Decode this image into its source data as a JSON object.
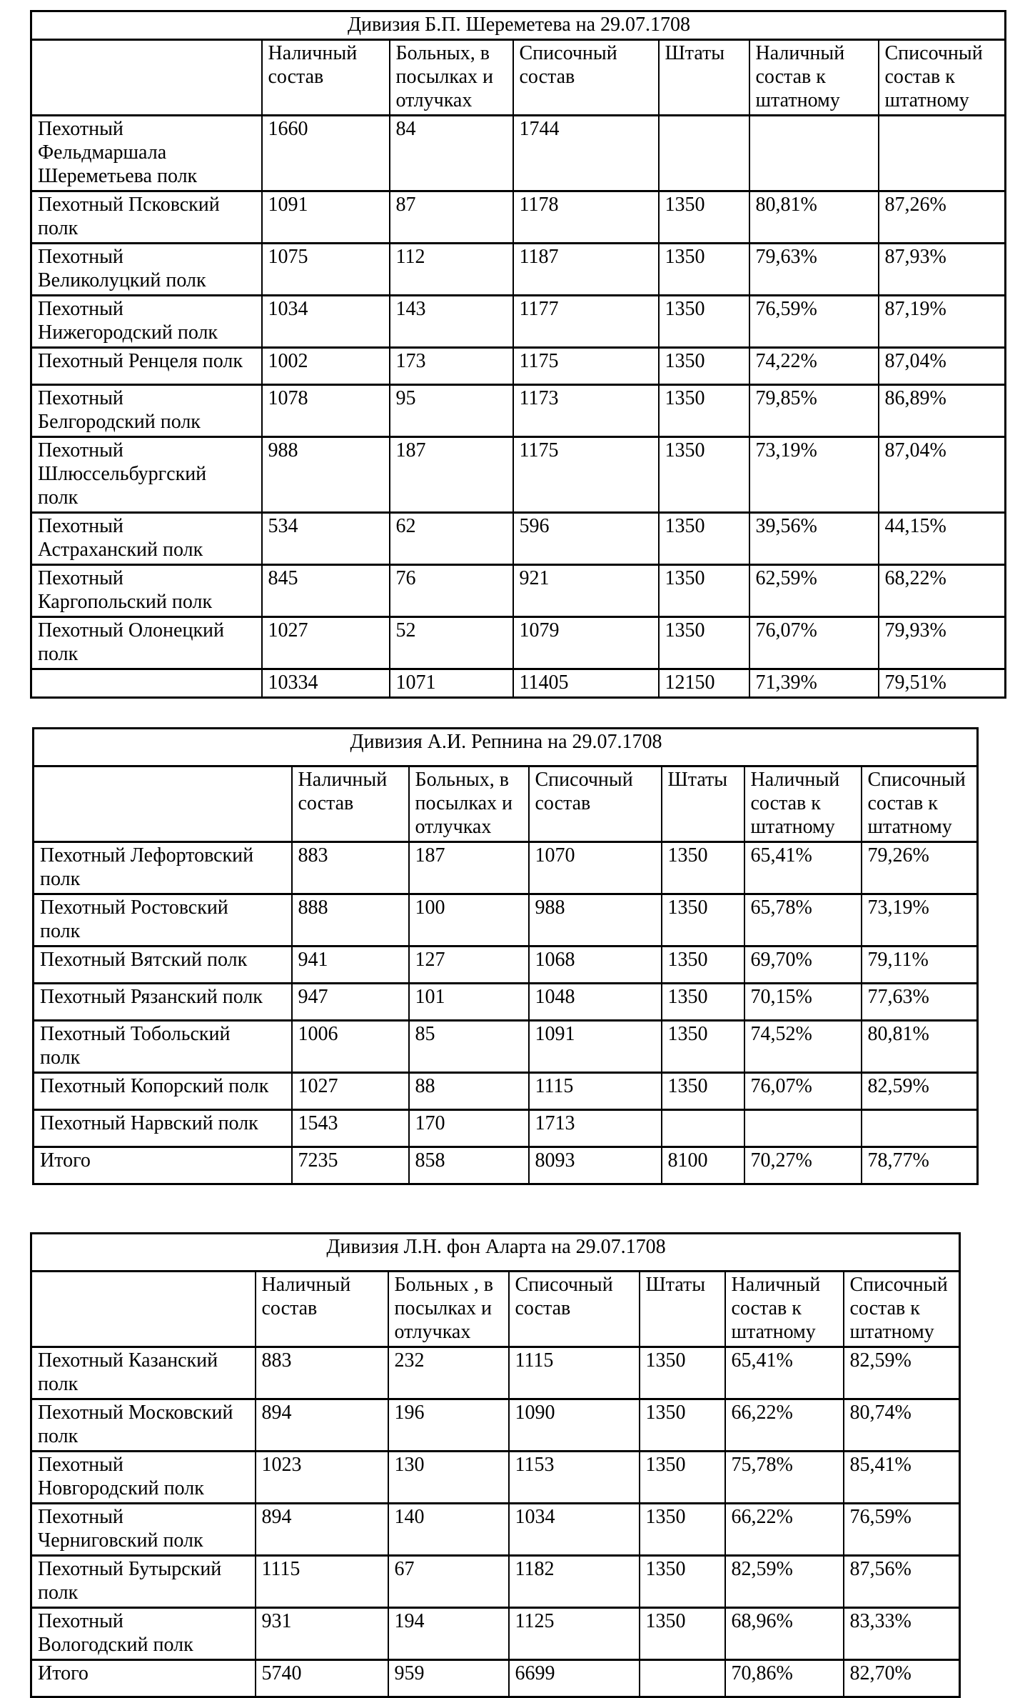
{
  "page": {
    "background": "#ffffff",
    "text_color": "#000000",
    "border_color": "#000000"
  },
  "tables": [
    {
      "title": "Дивизия Б.П. Шереметева на 29.07.1708",
      "columns": [
        "",
        "Наличный\nсостав",
        "Больных, в\nпосылках и\nотлучках",
        "Списочный\nсостав",
        "Штаты",
        "Наличный\nсостав к\nштатному",
        "Списочный\nсостав к\nштатному"
      ],
      "rows": [
        {
          "cells": [
            "Пехотный\nФельдмаршала\nШереметьева полк",
            "1660",
            "84",
            "1744",
            "",
            "",
            ""
          ]
        },
        {
          "cells": [
            "Пехотный Псковский\nполк",
            "1091",
            "87",
            "1178",
            "1350",
            "80,81%",
            "87,26%"
          ]
        },
        {
          "cells": [
            "Пехотный\nВеликолуцкий полк",
            "1075",
            "112",
            "1187",
            "1350",
            "79,63%",
            "87,93%"
          ]
        },
        {
          "cells": [
            "Пехотный\nНижегородский полк",
            "1034",
            "143",
            "1177",
            "1350",
            "76,59%",
            "87,19%"
          ]
        },
        {
          "cells": [
            "Пехотный Ренцеля полк",
            "1002",
            "173",
            "1175",
            "1350",
            "74,22%",
            "87,04%"
          ]
        },
        {
          "cells": [
            "Пехотный\nБелгородский полк",
            "1078",
            "95",
            "1173",
            "1350",
            "79,85%",
            "86,89%"
          ]
        },
        {
          "cells": [
            "Пехотный\nШлюссельбургский\nполк",
            "988",
            "187",
            "1175",
            "1350",
            "73,19%",
            "87,04%"
          ]
        },
        {
          "cells": [
            "Пехотный\nАстраханский полк",
            "534",
            "62",
            "596",
            "1350",
            "39,56%",
            "44,15%"
          ]
        },
        {
          "cells": [
            "Пехотный\nКаргопольский полк",
            "845",
            "76",
            "921",
            "1350",
            "62,59%",
            "68,22%"
          ]
        },
        {
          "cells": [
            "Пехотный Олонецкий\nполк",
            "1027",
            "52",
            "1079",
            "1350",
            "76,07%",
            "79,93%"
          ]
        },
        {
          "cells": [
            "",
            "10334",
            "1071",
            "11405",
            "12150",
            "71,39%",
            "79,51%"
          ]
        }
      ]
    },
    {
      "title": "Дивизия А.И. Репнина на 29.07.1708",
      "columns": [
        "",
        "Наличный\nсостав",
        "Больных, в\nпосылках и\nотлучках",
        "Списочный\nсостав",
        "Штаты",
        "Наличный\nсостав к\nштатному",
        "Списочный\nсостав к\nштатному"
      ],
      "rows": [
        {
          "cells": [
            "Пехотный Лефортовский\nполк",
            "883",
            "187",
            "1070",
            "1350",
            "65,41%",
            "79,26%"
          ]
        },
        {
          "cells": [
            "Пехотный Ростовский\nполк",
            "888",
            "100",
            "988",
            "1350",
            "65,78%",
            "73,19%"
          ]
        },
        {
          "cells": [
            "Пехотный Вятский полк",
            "941",
            "127",
            "1068",
            "1350",
            "69,70%",
            "79,11%"
          ]
        },
        {
          "cells": [
            "Пехотный Рязанский полк",
            "947",
            "101",
            "1048",
            "1350",
            "70,15%",
            "77,63%"
          ]
        },
        {
          "cells": [
            "Пехотный Тобольский\nполк",
            "1006",
            "85",
            "1091",
            "1350",
            "74,52%",
            "80,81%"
          ]
        },
        {
          "cells": [
            "Пехотный Копорский полк",
            "1027",
            "88",
            "1115",
            "1350",
            "76,07%",
            "82,59%"
          ]
        },
        {
          "cells": [
            "Пехотный Нарвский полк",
            "1543",
            "170",
            "1713",
            "",
            "",
            ""
          ]
        },
        {
          "cells": [
            "Итого",
            "7235",
            "858",
            "8093",
            "8100",
            "70,27%",
            "78,77%"
          ]
        }
      ]
    },
    {
      "title": "Дивизия Л.Н. фон Аларта на 29.07.1708",
      "columns": [
        "",
        "Наличный\nсостав",
        "Больных , в\nпосылках и\nотлучках",
        "Списочный\nсостав",
        "Штаты",
        "Наличный\nсостав к\nштатному",
        "Списочный\nсостав к\nштатному"
      ],
      "rows": [
        {
          "cells": [
            "Пехотный Казанский\nполк",
            "883",
            "232",
            "1115",
            "1350",
            "65,41%",
            "82,59%"
          ]
        },
        {
          "cells": [
            "Пехотный Московский\nполк",
            "894",
            "196",
            "1090",
            "1350",
            "66,22%",
            "80,74%"
          ]
        },
        {
          "cells": [
            "Пехотный\nНовгородский полк",
            "1023",
            "130",
            "1153",
            "1350",
            "75,78%",
            "85,41%"
          ]
        },
        {
          "cells": [
            "Пехотный\nЧерниговский полк",
            "894",
            "140",
            "1034",
            "1350",
            "66,22%",
            "76,59%"
          ]
        },
        {
          "cells": [
            "Пехотный Бутырский\nполк",
            "1115",
            "67",
            "1182",
            "1350",
            "82,59%",
            "87,56%"
          ]
        },
        {
          "cells": [
            "Пехотный\nВологодский полк",
            "931",
            "194",
            "1125",
            "1350",
            "68,96%",
            "83,33%"
          ]
        },
        {
          "cells": [
            "Итого",
            "5740",
            "959",
            "6699",
            "",
            "70,86%",
            "82,70%"
          ]
        }
      ]
    }
  ]
}
